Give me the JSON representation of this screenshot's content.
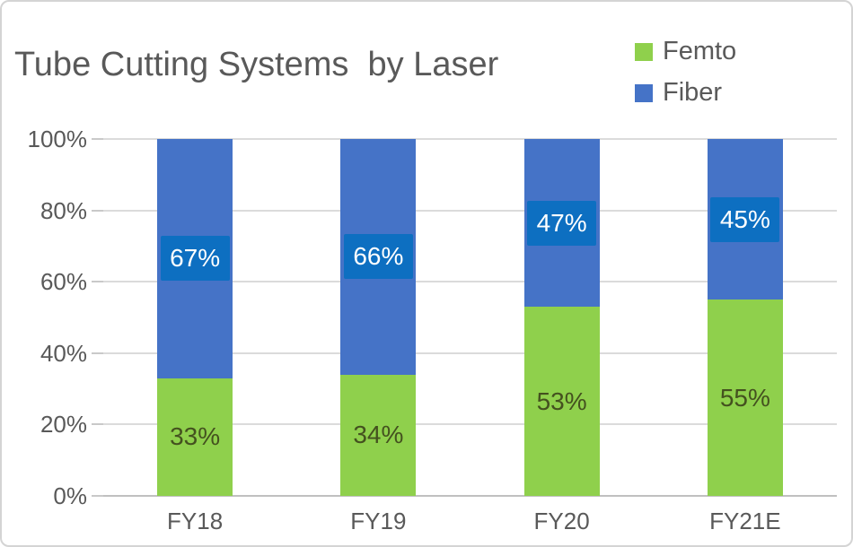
{
  "chart_data": {
    "type": "bar",
    "stacked": true,
    "title": "Tube Cutting Systems  by Laser",
    "categories": [
      "FY18",
      "FY19",
      "FY20",
      "FY21E"
    ],
    "series": [
      {
        "name": "Femto",
        "color": "#8FD04C",
        "values": [
          33,
          34,
          53,
          55
        ],
        "labels": [
          "33%",
          "34%",
          "53%",
          "55%"
        ],
        "label_color": "#44511F"
      },
      {
        "name": "Fiber",
        "color": "#4573C7",
        "values": [
          67,
          66,
          47,
          45
        ],
        "labels": [
          "67%",
          "66%",
          "47%",
          "45%"
        ],
        "label_color": "#FFFFFF",
        "label_bg": "#0D6FC1"
      }
    ],
    "y_ticks": [
      "0%",
      "20%",
      "40%",
      "60%",
      "80%",
      "100%"
    ],
    "ylim": [
      0,
      100
    ],
    "grid": true,
    "legend_position": "top-right",
    "xlabel": "",
    "ylabel": "",
    "colors": {
      "text": "#595959",
      "gridline": "#DBDBDB",
      "axis_line": "#C0C0C0",
      "card_border": "#D4D4D4",
      "background": "#FFFFFF"
    }
  }
}
